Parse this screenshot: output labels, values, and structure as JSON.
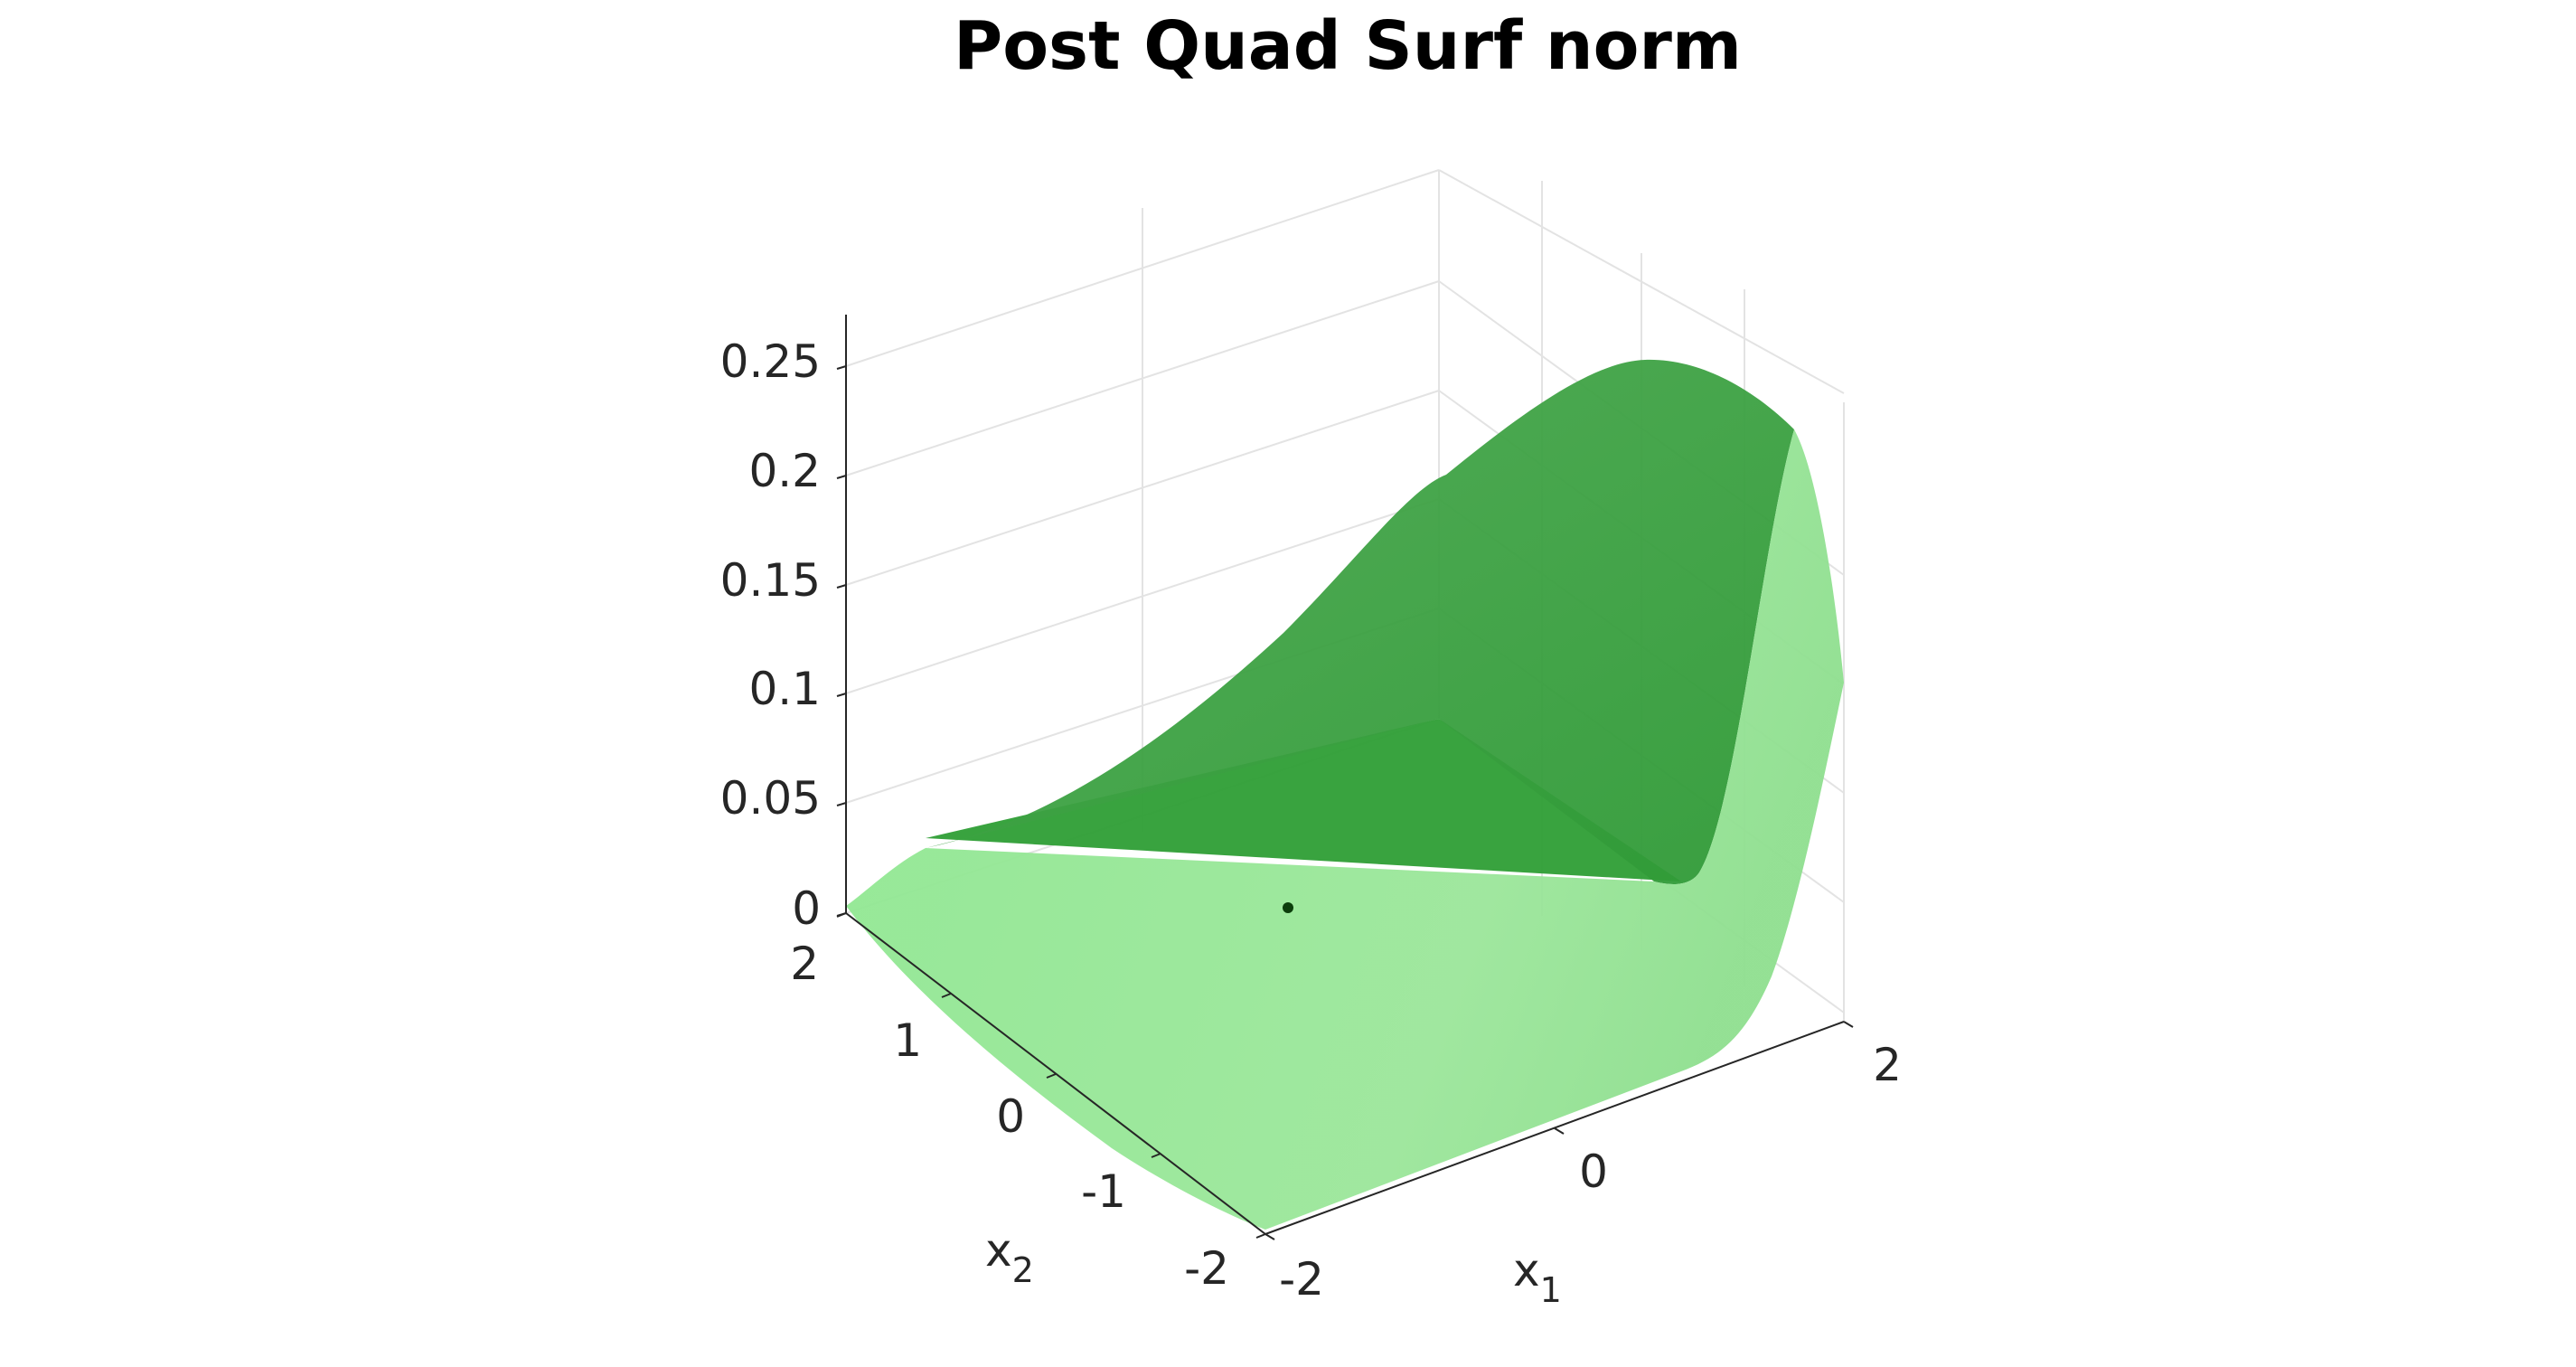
{
  "chart_data": {
    "type": "surface",
    "title": "Post Quad Surf norm",
    "xlabel": "x",
    "xlabel_sub": "1",
    "ylabel": "x",
    "ylabel_sub": "2",
    "zlabel": "",
    "xlim": [
      -2,
      2
    ],
    "ylim": [
      -2,
      2
    ],
    "zlim": [
      0,
      0.27
    ],
    "x_ticks": [
      "-2",
      "0",
      "2"
    ],
    "y_ticks": [
      "-2",
      "-1",
      "0",
      "1",
      "2"
    ],
    "z_ticks": [
      "0",
      "0.05",
      "0.1",
      "0.15",
      "0.2",
      "0.25"
    ],
    "grid": true,
    "surface_color": "#62e06a",
    "surface_description_points": [
      {
        "x1": -2,
        "x2": -2,
        "z": 0.0
      },
      {
        "x1": 2,
        "x2": 2,
        "z": 0.0
      },
      {
        "x1": -2,
        "x2": 2,
        "z": 0.0
      },
      {
        "x1": 2,
        "x2": -2,
        "z": 0.11
      },
      {
        "x1": 1.5,
        "x2": -2,
        "z": 0.22
      },
      {
        "x1": 0.7,
        "x2": -2,
        "z": 0.25
      }
    ],
    "marker": {
      "x1": 0,
      "x2": 0,
      "z": 0,
      "color": "#0b3d0b"
    }
  }
}
